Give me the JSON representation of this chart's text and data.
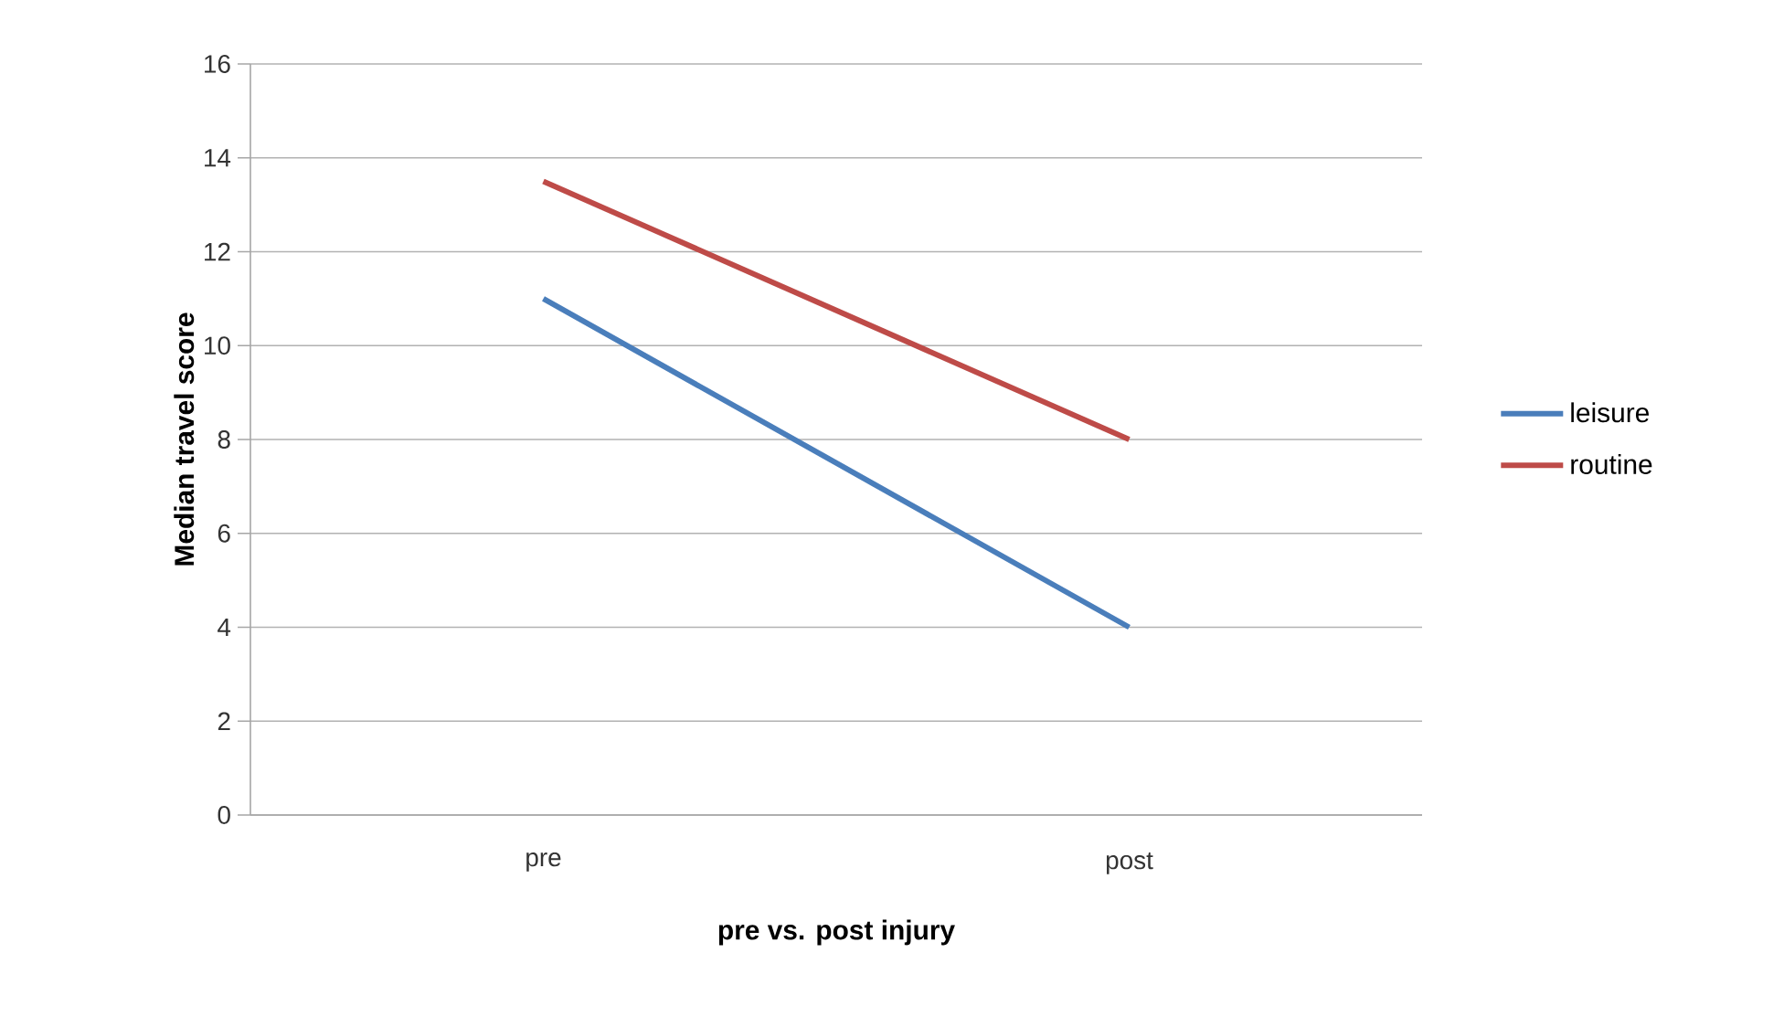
{
  "chart_data": {
    "type": "line",
    "xlabel": "pre vs. post injury",
    "ylabel": "Median travel score",
    "categories": [
      "pre",
      "post"
    ],
    "series": [
      {
        "name": "leisure",
        "color": "#4a7ebb",
        "values": [
          11,
          4
        ]
      },
      {
        "name": "routine",
        "color": "#be4b48",
        "values": [
          13.5,
          8
        ]
      }
    ],
    "ylim": [
      0,
      16
    ],
    "yticks": [
      0,
      2,
      4,
      6,
      8,
      10,
      12,
      14,
      16
    ],
    "grid": "y",
    "legend": "right",
    "marker": "none",
    "line_style": "solid"
  }
}
